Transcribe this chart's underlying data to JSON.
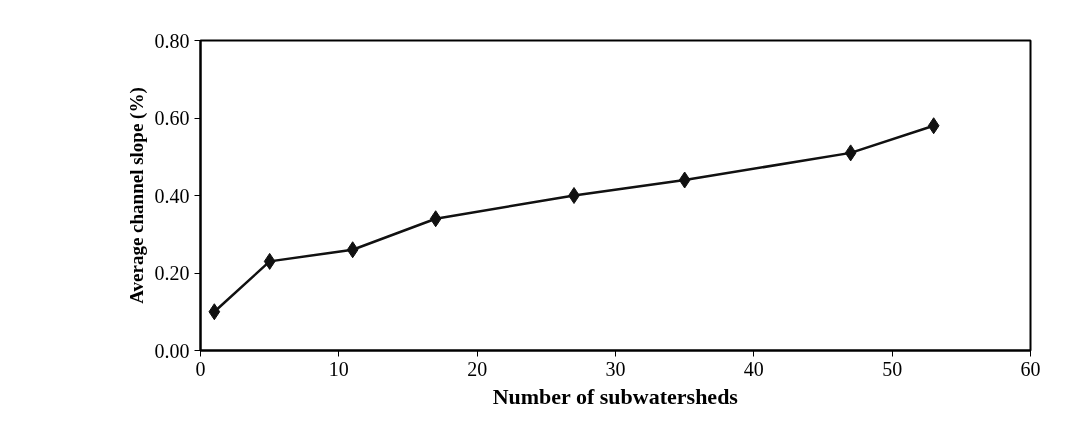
{
  "chart_data": {
    "type": "line",
    "xlabel": "Number of subwatersheds",
    "ylabel": "Average channel slope (%)",
    "x": [
      1,
      5,
      11,
      17,
      27,
      35,
      47,
      53
    ],
    "series": [
      {
        "color": "#111111",
        "values": [
          0.1,
          0.23,
          0.26,
          0.34,
          0.4,
          0.44,
          0.51,
          0.58
        ]
      }
    ],
    "xlim": [
      0,
      60
    ],
    "xticks": [
      0,
      10,
      20,
      30,
      40,
      50,
      60
    ],
    "ylim": [
      0,
      0.8
    ],
    "yticks": [
      {
        "value": 0,
        "label": "0.00"
      },
      {
        "value": 0.2,
        "label": "0.20"
      },
      {
        "value": 0.4,
        "label": "0.40"
      },
      {
        "value": 0.6,
        "label": "0.60"
      },
      {
        "value": 0.8,
        "label": "0.80"
      }
    ],
    "grid": false,
    "marker": "diamond",
    "line_style": "solid"
  }
}
